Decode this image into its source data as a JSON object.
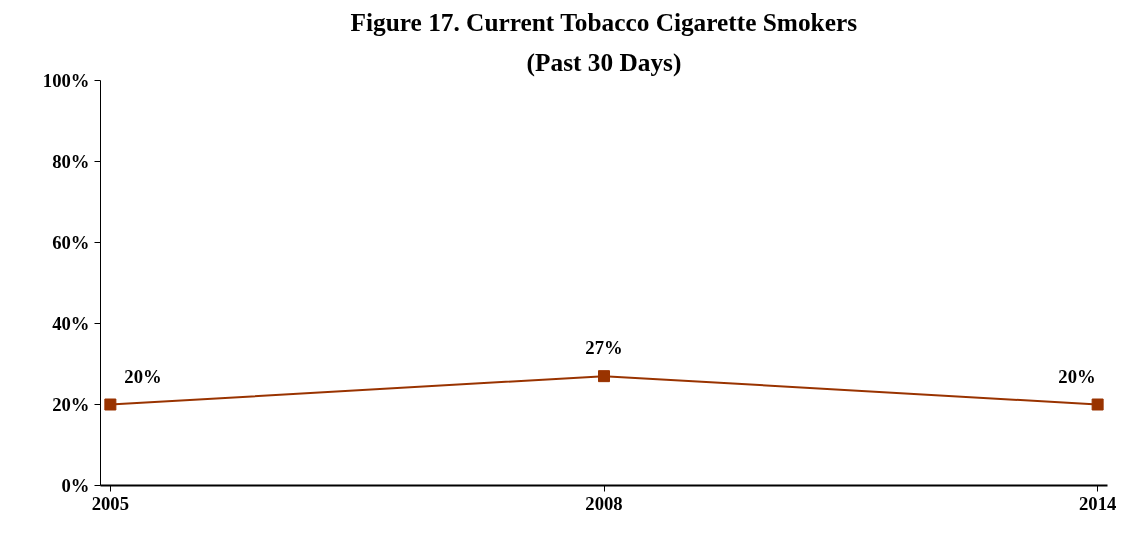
{
  "chart_data": {
    "type": "line",
    "title": "Figure 17. Current Tobacco Cigarette Smokers",
    "subtitle": "(Past 30 Days)",
    "categories": [
      "2005",
      "2008",
      "2014"
    ],
    "series": [
      {
        "color": "#993300",
        "values": [
          20,
          27,
          20
        ],
        "value_labels": [
          "20%",
          "27%",
          "20%"
        ]
      }
    ],
    "ylim": [
      0,
      100
    ],
    "yticks": [
      {
        "value": 0,
        "label": "0%"
      },
      {
        "value": 20,
        "label": "20%"
      },
      {
        "value": 40,
        "label": "40%"
      },
      {
        "value": 60,
        "label": "60%"
      },
      {
        "value": 80,
        "label": "80%"
      },
      {
        "value": 100,
        "label": "100%"
      }
    ],
    "grid": false,
    "marker": "square",
    "line_style": "solid"
  }
}
